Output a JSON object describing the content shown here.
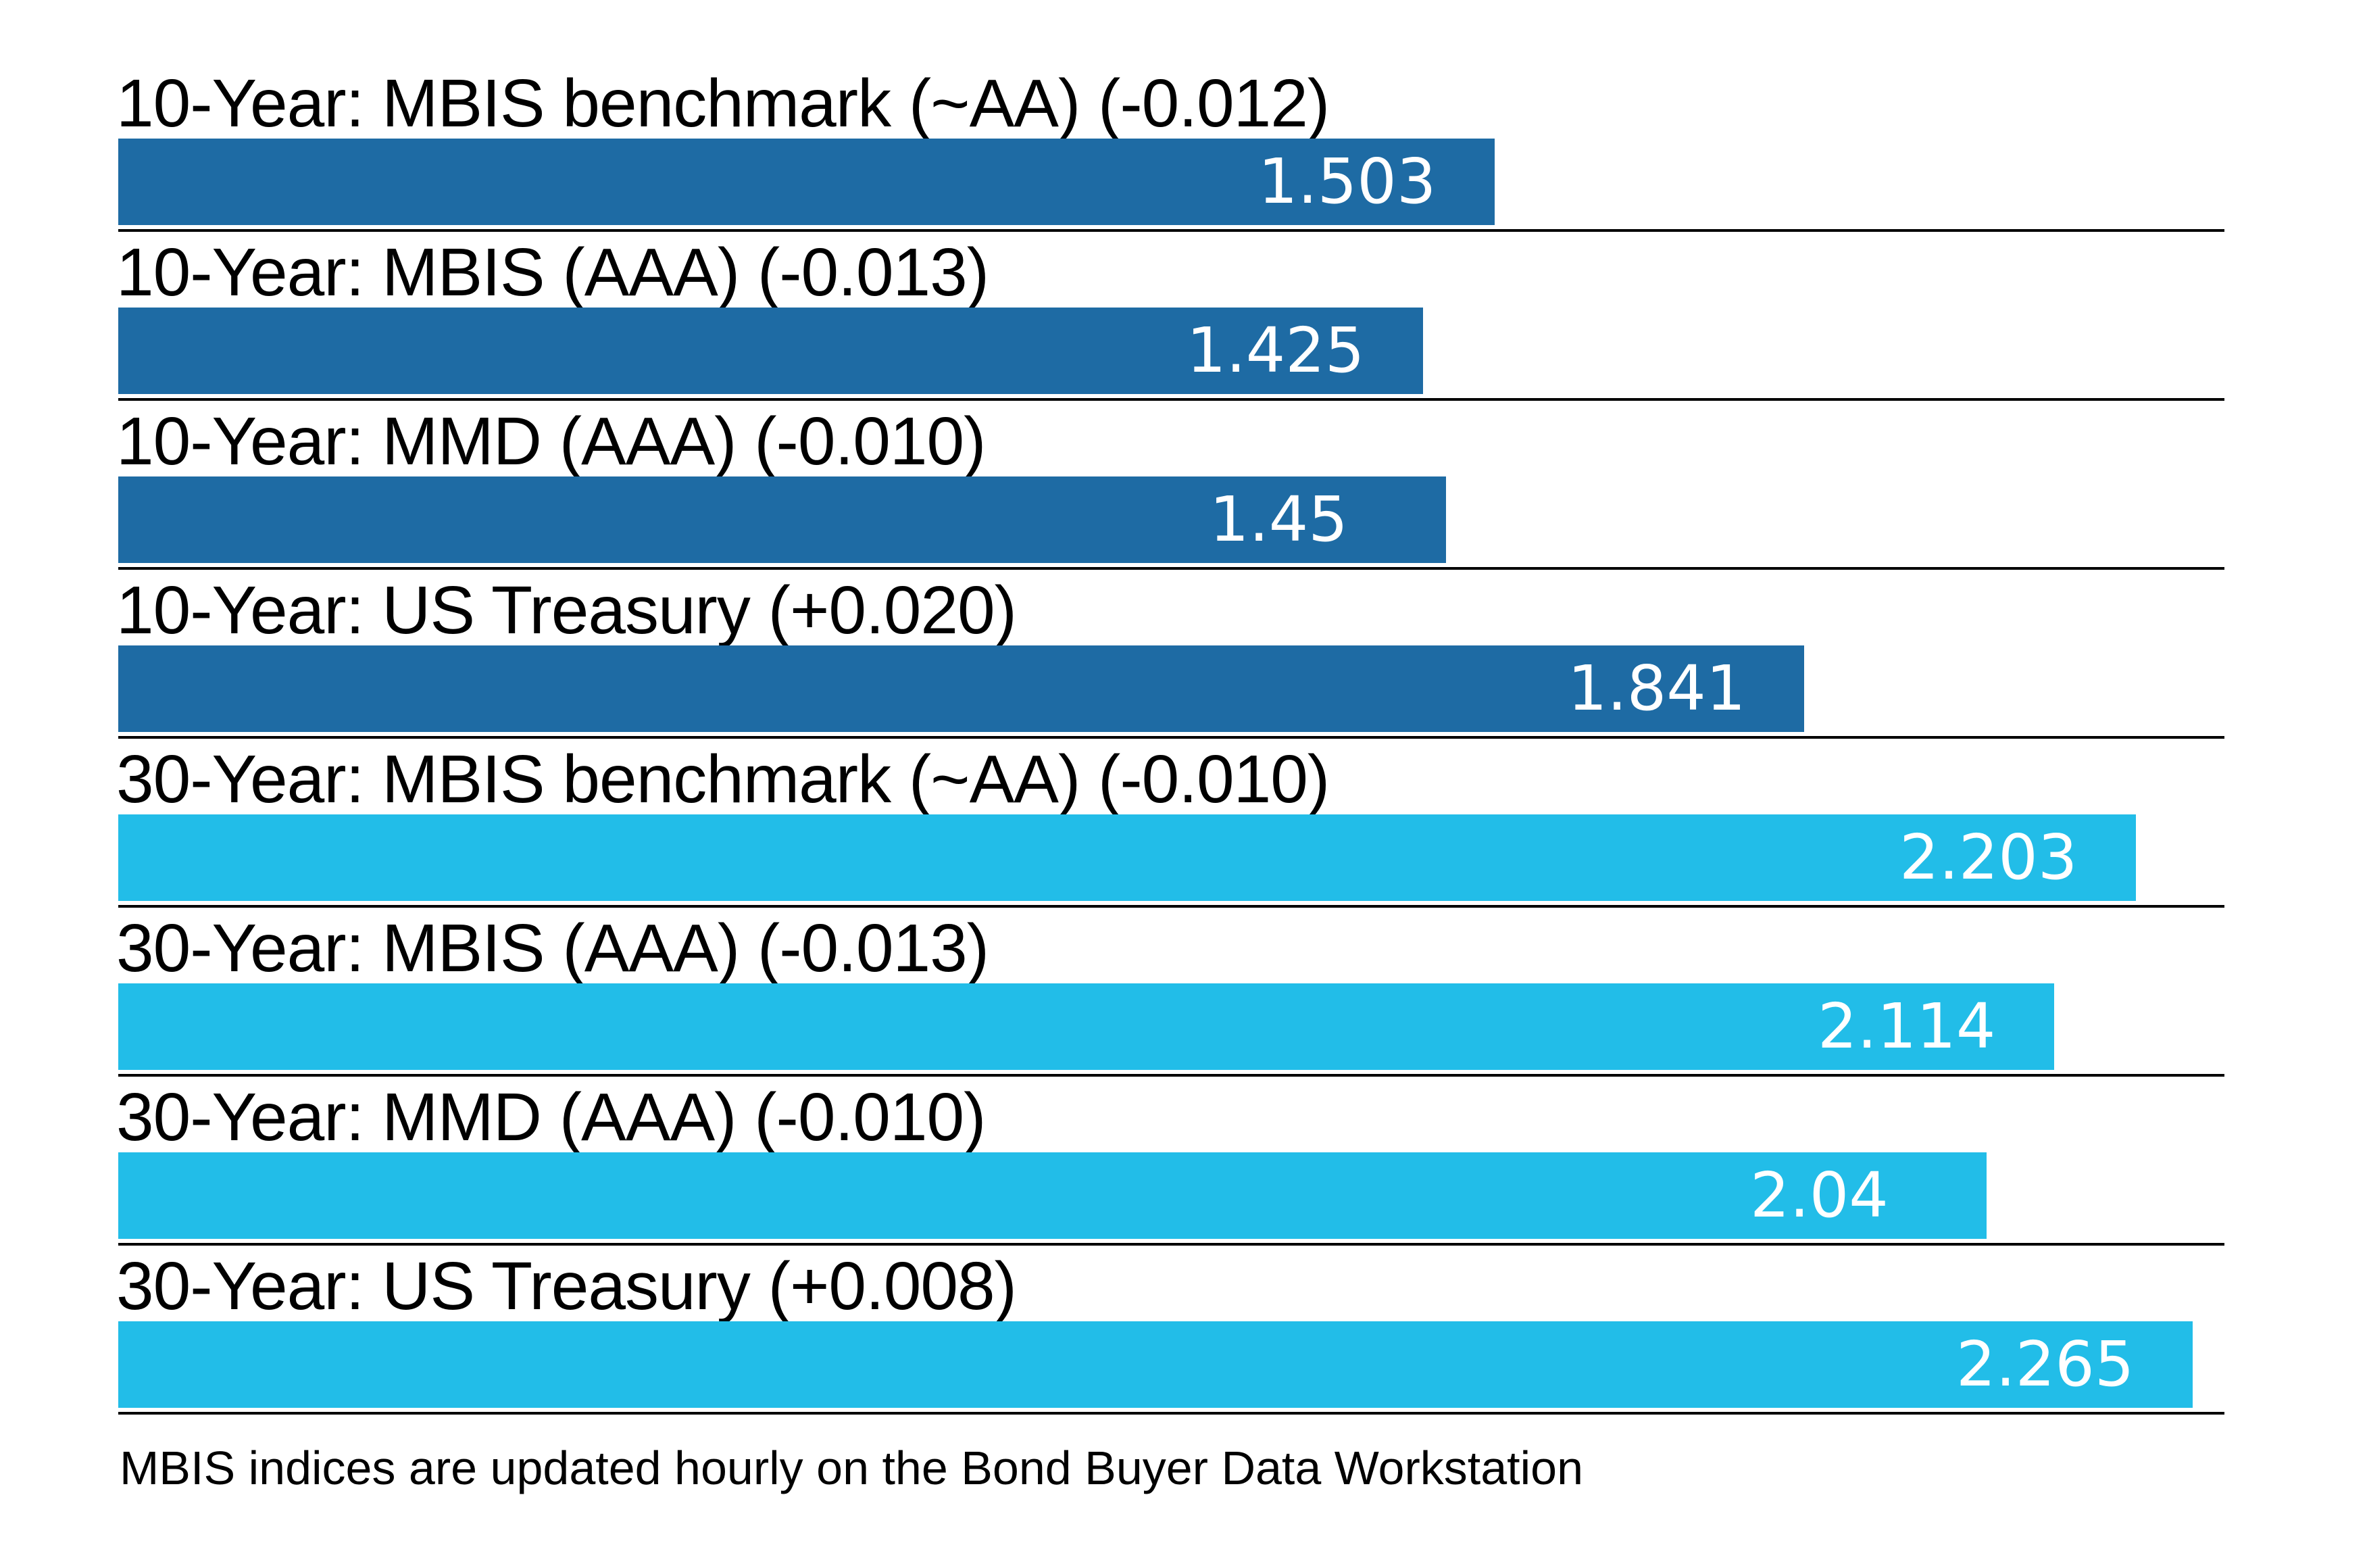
{
  "chart_data": {
    "type": "bar",
    "orientation": "horizontal",
    "title": "",
    "xlabel": "",
    "ylabel": "",
    "xlim": [
      0,
      2.3
    ],
    "grid": false,
    "legend": "none",
    "categories": [
      "10-Year: MBIS benchmark (~AA) (-0.012)",
      "10-Year: MBIS (AAA) (-0.013)",
      "10-Year: MMD (AAA) (-0.010)",
      "10-Year: US Treasury (+0.020)",
      "30-Year: MBIS benchmark (~AA) (-0.010)",
      "30-Year: MBIS (AAA) (-0.013)",
      "30-Year: MMD (AAA) (-0.010)",
      "30-Year: US Treasury (+0.008)"
    ],
    "values": [
      1.503,
      1.425,
      1.45,
      1.841,
      2.203,
      2.114,
      2.04,
      2.265
    ],
    "rows": [
      {
        "label": "10-Year: MBIS benchmark (~AA) (-0.012)",
        "value": 1.503,
        "display": "1.503",
        "group": "10-year"
      },
      {
        "label": "10-Year: MBIS (AAA) (-0.013)",
        "value": 1.425,
        "display": "1.425",
        "group": "10-year"
      },
      {
        "label": "10-Year: MMD (AAA) (-0.010)",
        "value": 1.45,
        "display": "1.45",
        "group": "10-year"
      },
      {
        "label": "10-Year: US Treasury (+0.020)",
        "value": 1.841,
        "display": "1.841",
        "group": "10-year"
      },
      {
        "label": "30-Year: MBIS benchmark (~AA) (-0.010)",
        "value": 2.203,
        "display": "2.203",
        "group": "30-year"
      },
      {
        "label": "30-Year: MBIS (AAA) (-0.013)",
        "value": 2.114,
        "display": "2.114",
        "group": "30-year"
      },
      {
        "label": "30-Year: MMD (AAA) (-0.010)",
        "value": 2.04,
        "display": "2.04",
        "group": "30-year"
      },
      {
        "label": "30-Year: US Treasury (+0.008)",
        "value": 2.265,
        "display": "2.265",
        "group": "30-year"
      }
    ],
    "colors": {
      "ten_year_bar": "#1e6ba4",
      "thirty_year_bar": "#22bde8",
      "value_text": "#ffffff",
      "label_text": "#000000",
      "baseline": "#000000",
      "background": "#ffffff"
    },
    "footnote": "MBIS indices are updated hourly on the Bond Buyer Data Workstation"
  }
}
